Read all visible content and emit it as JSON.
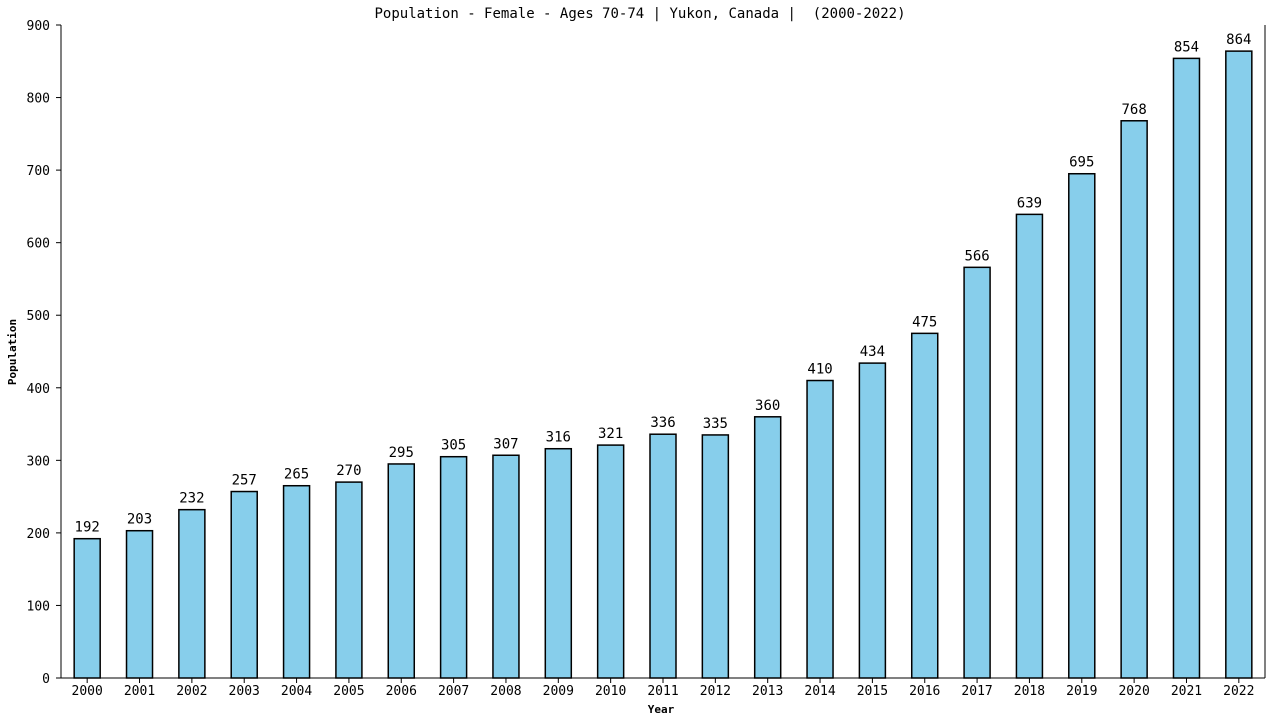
{
  "chart_data": {
    "type": "bar",
    "title": "Population - Female - Ages 70-74 | Yukon, Canada |  (2000-2022)",
    "xlabel": "Year",
    "ylabel": "Population",
    "ylim": [
      0,
      900
    ],
    "yticks": [
      0,
      100,
      200,
      300,
      400,
      500,
      600,
      700,
      800,
      900
    ],
    "categories": [
      "2000",
      "2001",
      "2002",
      "2003",
      "2004",
      "2005",
      "2006",
      "2007",
      "2008",
      "2009",
      "2010",
      "2011",
      "2012",
      "2013",
      "2014",
      "2015",
      "2016",
      "2017",
      "2018",
      "2019",
      "2020",
      "2021",
      "2022"
    ],
    "values": [
      192,
      203,
      232,
      257,
      265,
      270,
      295,
      305,
      307,
      316,
      321,
      336,
      335,
      360,
      410,
      434,
      475,
      566,
      639,
      695,
      768,
      854,
      864
    ],
    "bar_color": "#87ceeb",
    "grid": false,
    "legend": "none"
  }
}
